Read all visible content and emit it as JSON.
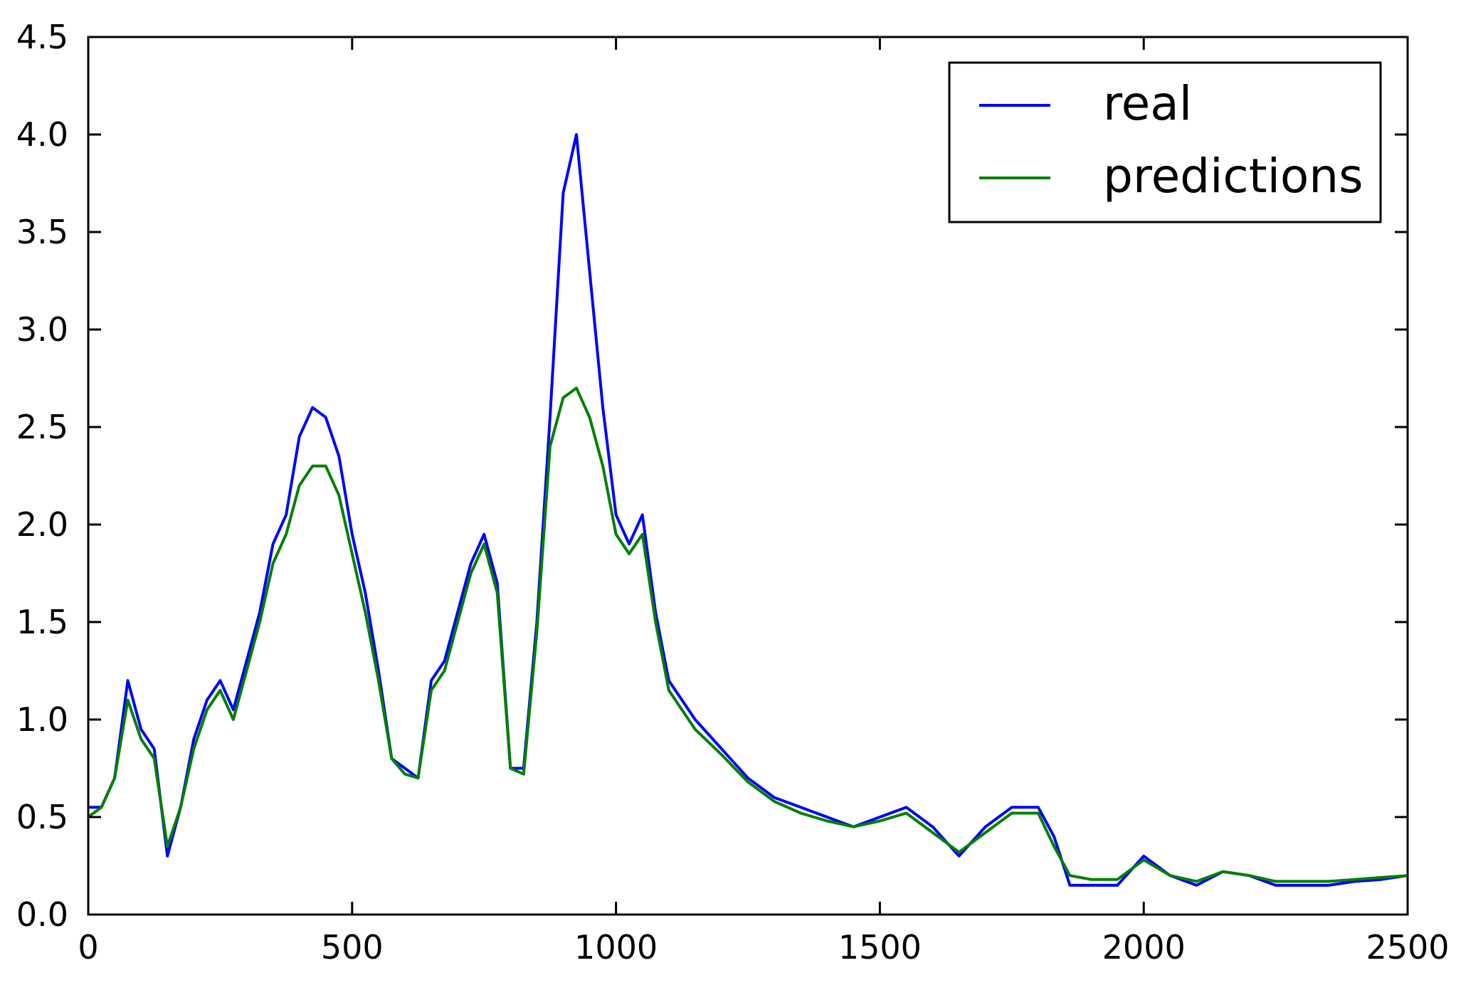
{
  "chart_data": {
    "type": "line",
    "title": "",
    "xlabel": "",
    "ylabel": "",
    "xlim": [
      0,
      2500
    ],
    "ylim": [
      0.0,
      4.5
    ],
    "x_ticks": [
      0,
      500,
      1000,
      1500,
      2000,
      2500
    ],
    "x_tick_labels": [
      "0",
      "500",
      "1000",
      "1500",
      "2000",
      "2500"
    ],
    "y_ticks": [
      0.0,
      0.5,
      1.0,
      1.5,
      2.0,
      2.5,
      3.0,
      3.5,
      4.0,
      4.5
    ],
    "y_tick_labels": [
      "0.0",
      "0.5",
      "1.0",
      "1.5",
      "2.0",
      "2.5",
      "3.0",
      "3.5",
      "4.0",
      "4.5"
    ],
    "grid": false,
    "legend_position": "top-right",
    "series": [
      {
        "name": "real",
        "color": "#0000ff",
        "x": [
          0,
          25,
          50,
          75,
          100,
          125,
          150,
          175,
          200,
          225,
          250,
          275,
          300,
          325,
          350,
          375,
          400,
          425,
          450,
          475,
          500,
          525,
          550,
          575,
          600,
          625,
          650,
          675,
          700,
          725,
          750,
          775,
          800,
          825,
          850,
          875,
          900,
          925,
          950,
          975,
          1000,
          1025,
          1050,
          1075,
          1100,
          1150,
          1200,
          1250,
          1300,
          1350,
          1400,
          1450,
          1500,
          1550,
          1600,
          1650,
          1700,
          1750,
          1800,
          1830,
          1860,
          1900,
          1950,
          2000,
          2050,
          2100,
          2150,
          2200,
          2250,
          2300,
          2350,
          2400,
          2450,
          2500
        ],
        "y": [
          0.55,
          0.55,
          0.7,
          1.2,
          0.95,
          0.85,
          0.3,
          0.55,
          0.9,
          1.1,
          1.2,
          1.05,
          1.3,
          1.55,
          1.9,
          2.05,
          2.45,
          2.6,
          2.55,
          2.35,
          1.95,
          1.65,
          1.25,
          0.8,
          0.75,
          0.7,
          1.2,
          1.3,
          1.55,
          1.8,
          1.95,
          1.7,
          0.75,
          0.75,
          1.5,
          2.55,
          3.7,
          4.0,
          3.3,
          2.6,
          2.05,
          1.9,
          2.05,
          1.55,
          1.2,
          1.0,
          0.85,
          0.7,
          0.6,
          0.55,
          0.5,
          0.45,
          0.5,
          0.55,
          0.45,
          0.3,
          0.45,
          0.55,
          0.55,
          0.4,
          0.15,
          0.15,
          0.15,
          0.3,
          0.2,
          0.15,
          0.22,
          0.2,
          0.15,
          0.15,
          0.15,
          0.17,
          0.18,
          0.2
        ]
      },
      {
        "name": "predictions",
        "color": "#008000",
        "x": [
          0,
          25,
          50,
          75,
          100,
          125,
          150,
          175,
          200,
          225,
          250,
          275,
          300,
          325,
          350,
          375,
          400,
          425,
          450,
          475,
          500,
          525,
          550,
          575,
          600,
          625,
          650,
          675,
          700,
          725,
          750,
          775,
          800,
          825,
          850,
          875,
          900,
          925,
          950,
          975,
          1000,
          1025,
          1050,
          1075,
          1100,
          1150,
          1200,
          1250,
          1300,
          1350,
          1400,
          1450,
          1500,
          1550,
          1600,
          1650,
          1700,
          1750,
          1800,
          1830,
          1860,
          1900,
          1950,
          2000,
          2050,
          2100,
          2150,
          2200,
          2250,
          2300,
          2350,
          2400,
          2450,
          2500
        ],
        "y": [
          0.5,
          0.55,
          0.7,
          1.1,
          0.9,
          0.8,
          0.35,
          0.55,
          0.85,
          1.05,
          1.15,
          1.0,
          1.25,
          1.5,
          1.8,
          1.95,
          2.2,
          2.3,
          2.3,
          2.15,
          1.85,
          1.55,
          1.2,
          0.8,
          0.72,
          0.7,
          1.15,
          1.25,
          1.5,
          1.75,
          1.9,
          1.65,
          0.75,
          0.72,
          1.45,
          2.4,
          2.65,
          2.7,
          2.55,
          2.3,
          1.95,
          1.85,
          1.95,
          1.5,
          1.15,
          0.95,
          0.82,
          0.68,
          0.58,
          0.52,
          0.48,
          0.45,
          0.48,
          0.52,
          0.42,
          0.32,
          0.42,
          0.52,
          0.52,
          0.35,
          0.2,
          0.18,
          0.18,
          0.28,
          0.2,
          0.17,
          0.22,
          0.2,
          0.17,
          0.17,
          0.17,
          0.18,
          0.19,
          0.2
        ]
      }
    ]
  }
}
